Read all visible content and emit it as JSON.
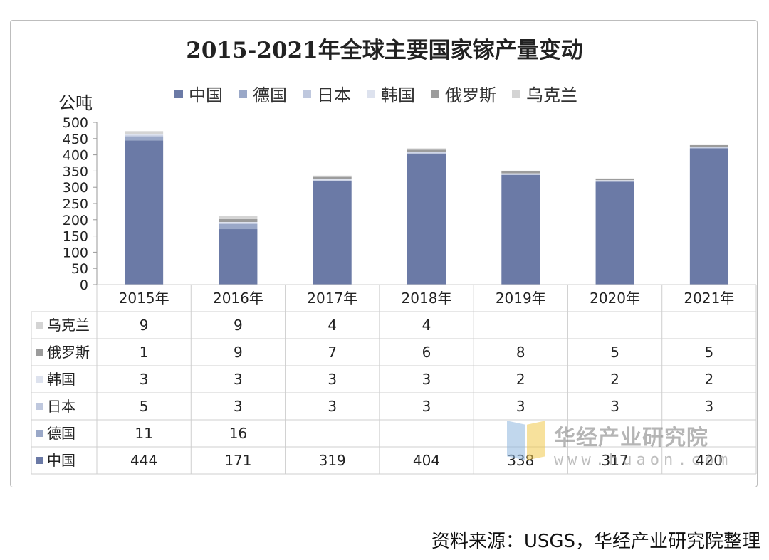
{
  "chart_data": {
    "type": "bar",
    "stacked": true,
    "title": "2015-2021年全球主要国家镓产量变动",
    "ylabel": "公吨",
    "ylim": [
      0,
      500
    ],
    "yticks": [
      0,
      50,
      100,
      150,
      200,
      250,
      300,
      350,
      400,
      450,
      500
    ],
    "categories": [
      "2015年",
      "2016年",
      "2017年",
      "2018年",
      "2019年",
      "2020年",
      "2021年"
    ],
    "series": [
      {
        "name": "中国",
        "color": "#6b7aa6",
        "values": [
          444,
          171,
          319,
          404,
          338,
          317,
          420
        ]
      },
      {
        "name": "德国",
        "color": "#9aa8c8",
        "values": [
          11,
          16,
          null,
          null,
          null,
          null,
          null
        ]
      },
      {
        "name": "日本",
        "color": "#bfc8de",
        "values": [
          5,
          3,
          3,
          3,
          3,
          3,
          3
        ]
      },
      {
        "name": "韩国",
        "color": "#dde2ee",
        "values": [
          3,
          3,
          3,
          3,
          2,
          2,
          2
        ]
      },
      {
        "name": "俄罗斯",
        "color": "#9c9c9c",
        "values": [
          1,
          9,
          7,
          6,
          8,
          5,
          5
        ]
      },
      {
        "name": "乌克兰",
        "color": "#d4d4d4",
        "values": [
          9,
          9,
          4,
          4,
          null,
          null,
          null
        ]
      }
    ],
    "legend_position": "top",
    "grid": false,
    "data_table": true
  },
  "source_note": "资料来源：USGS，华经产业研究院整理",
  "watermark": {
    "name": "华经产业研究院",
    "url": "www.huaon.com"
  }
}
